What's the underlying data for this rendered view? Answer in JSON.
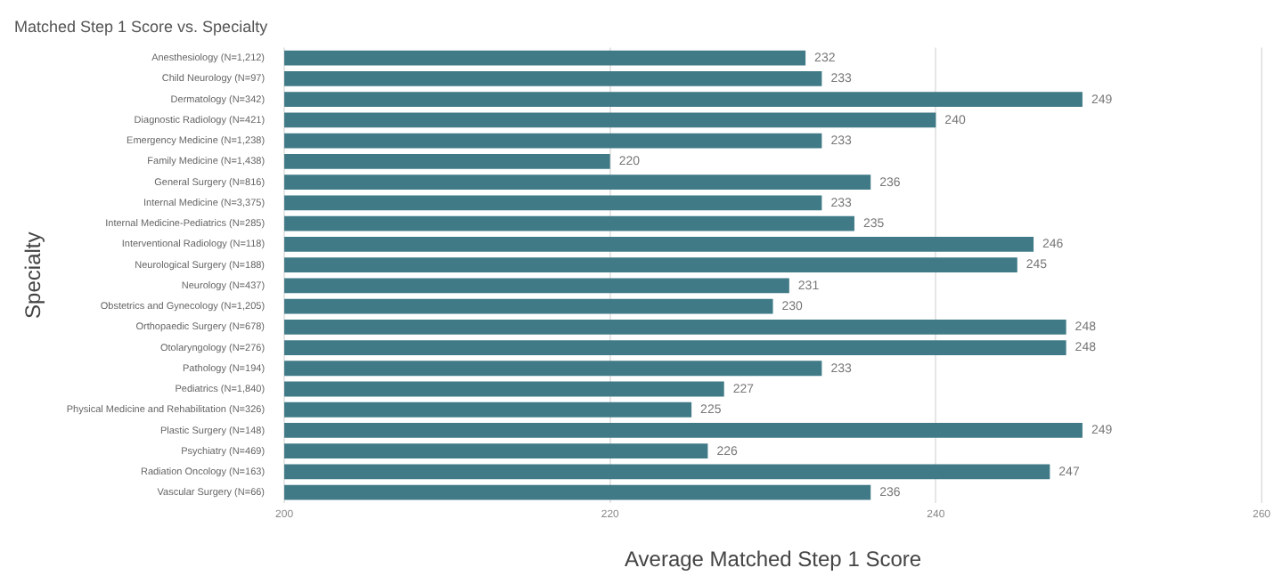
{
  "chart_data": {
    "type": "bar",
    "orientation": "horizontal",
    "title": "Matched Step 1 Score vs. Specialty",
    "xlabel": "Average Matched Step 1 Score",
    "ylabel": "Specialty",
    "categories": [
      "Anesthesiology (N=1,212)",
      "Child Neurology (N=97)",
      "Dermatology (N=342)",
      "Diagnostic Radiology (N=421)",
      "Emergency Medicine (N=1,238)",
      "Family Medicine (N=1,438)",
      "General Surgery (N=816)",
      "Internal Medicine (N=3,375)",
      "Internal Medicine-Pediatrics (N=285)",
      "Interventional Radiology (N=118)",
      "Neurological Surgery (N=188)",
      "Neurology (N=437)",
      "Obstetrics and Gynecology (N=1,205)",
      "Orthopaedic Surgery (N=678)",
      "Otolaryngology (N=276)",
      "Pathology (N=194)",
      "Pediatrics (N=1,840)",
      "Physical Medicine and Rehabilitation (N=326)",
      "Plastic Surgery (N=148)",
      "Psychiatry (N=469)",
      "Radiation Oncology (N=163)",
      "Vascular Surgery (N=66)"
    ],
    "values": [
      232,
      233,
      249,
      240,
      233,
      220,
      236,
      233,
      235,
      246,
      245,
      231,
      230,
      248,
      248,
      233,
      227,
      225,
      249,
      226,
      247,
      236
    ],
    "color": "#3f7a86",
    "xlim": [
      200,
      260
    ],
    "xticks": [
      200,
      220,
      240,
      260
    ],
    "grid": "x",
    "data_labels": true
  }
}
